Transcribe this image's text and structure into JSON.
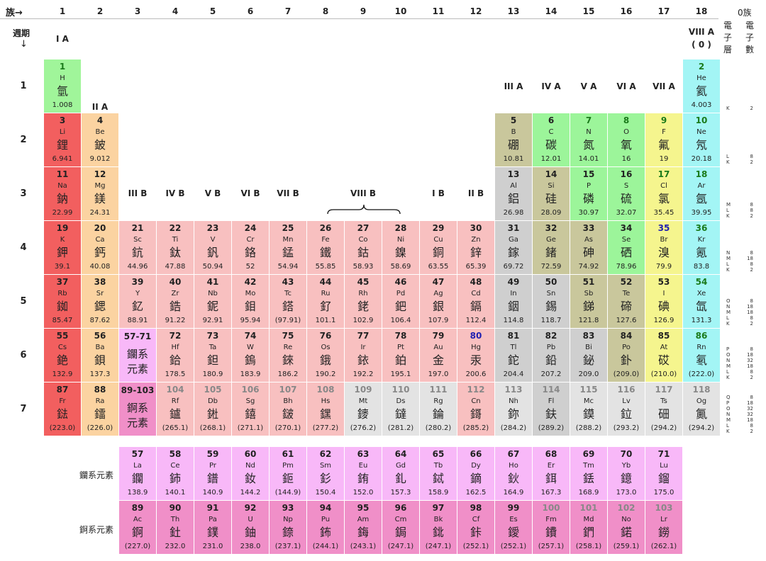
{
  "header": {
    "group_label": "族→",
    "period_label": "週期",
    "period_arrow": "↓",
    "shell_col_title": "電子層",
    "count_col_title": "電子數",
    "count_col_title_top": "0族",
    "groups": [
      "1",
      "2",
      "3",
      "4",
      "5",
      "6",
      "7",
      "8",
      "9",
      "10",
      "11",
      "12",
      "13",
      "14",
      "15",
      "16",
      "17",
      "18"
    ],
    "periods": [
      "1",
      "2",
      "3",
      "4",
      "5",
      "6",
      "7"
    ]
  },
  "group_names": {
    "g1": "I A",
    "g2": "II A",
    "g3": "III B",
    "g4": "IV B",
    "g5": "V B",
    "g6": "VI B",
    "g7": "VII B",
    "g8": "VIII B",
    "g11": "I B",
    "g12": "II B",
    "g13": "III A",
    "g14": "IV A",
    "g15": "V A",
    "g16": "VI A",
    "g17": "VII A",
    "g18": "VIII A",
    "g18b": "( 0 )"
  },
  "series_labels": {
    "lanthanide": "鑭系元素",
    "actinide": "錒系元素"
  },
  "colors": {
    "hydrogen": "#a0f59a",
    "alkali": "#f25f5f",
    "alkaline": "#fbd3a1",
    "transition": "#f8c0c0",
    "metalloid": "#c9c79c",
    "nonmetal": "#9cf59a",
    "halogen": "#f5f58e",
    "noble": "#a3f5f5",
    "poor": "#cfcfcf",
    "lanth": "#f8b8f8",
    "actin": "#f08fc8",
    "unknown": "#e3e3e3"
  },
  "elements": [
    {
      "n": "1",
      "s": "H",
      "c": "氫",
      "m": "1.008",
      "col": 1,
      "row": 1,
      "t": "hydrogen",
      "nc": "#1a7a1a"
    },
    {
      "n": "2",
      "s": "He",
      "c": "氦",
      "m": "4.003",
      "col": 18,
      "row": 1,
      "t": "noble",
      "nc": "#1a7a1a"
    },
    {
      "n": "3",
      "s": "Li",
      "c": "鋰",
      "m": "6.941",
      "col": 1,
      "row": 2,
      "t": "alkali"
    },
    {
      "n": "4",
      "s": "Be",
      "c": "鈹",
      "m": "9.012",
      "col": 2,
      "row": 2,
      "t": "alkaline"
    },
    {
      "n": "5",
      "s": "B",
      "c": "硼",
      "m": "10.81",
      "col": 13,
      "row": 2,
      "t": "metalloid"
    },
    {
      "n": "6",
      "s": "C",
      "c": "碳",
      "m": "12.01",
      "col": 14,
      "row": 2,
      "t": "nonmetal"
    },
    {
      "n": "7",
      "s": "N",
      "c": "氮",
      "m": "14.01",
      "col": 15,
      "row": 2,
      "t": "nonmetal",
      "nc": "#1a7a1a"
    },
    {
      "n": "8",
      "s": "O",
      "c": "氧",
      "m": "16",
      "col": 16,
      "row": 2,
      "t": "nonmetal",
      "nc": "#1a7a1a"
    },
    {
      "n": "9",
      "s": "F",
      "c": "氟",
      "m": "19",
      "col": 17,
      "row": 2,
      "t": "halogen",
      "nc": "#1a7a1a"
    },
    {
      "n": "10",
      "s": "Ne",
      "c": "氖",
      "m": "20.18",
      "col": 18,
      "row": 2,
      "t": "noble",
      "nc": "#1a7a1a"
    },
    {
      "n": "11",
      "s": "Na",
      "c": "鈉",
      "m": "22.99",
      "col": 1,
      "row": 3,
      "t": "alkali"
    },
    {
      "n": "12",
      "s": "Mg",
      "c": "鎂",
      "m": "24.31",
      "col": 2,
      "row": 3,
      "t": "alkaline"
    },
    {
      "n": "13",
      "s": "Al",
      "c": "鋁",
      "m": "26.98",
      "col": 13,
      "row": 3,
      "t": "poor"
    },
    {
      "n": "14",
      "s": "Si",
      "c": "硅",
      "m": "28.09",
      "col": 14,
      "row": 3,
      "t": "metalloid"
    },
    {
      "n": "15",
      "s": "P",
      "c": "磷",
      "m": "30.97",
      "col": 15,
      "row": 3,
      "t": "nonmetal"
    },
    {
      "n": "16",
      "s": "S",
      "c": "硫",
      "m": "32.07",
      "col": 16,
      "row": 3,
      "t": "nonmetal"
    },
    {
      "n": "17",
      "s": "Cl",
      "c": "氯",
      "m": "35.45",
      "col": 17,
      "row": 3,
      "t": "halogen",
      "nc": "#1a7a1a"
    },
    {
      "n": "18",
      "s": "Ar",
      "c": "氬",
      "m": "39.95",
      "col": 18,
      "row": 3,
      "t": "noble",
      "nc": "#1a7a1a"
    },
    {
      "n": "19",
      "s": "K",
      "c": "鉀",
      "m": "39.1",
      "col": 1,
      "row": 4,
      "t": "alkali"
    },
    {
      "n": "20",
      "s": "Ca",
      "c": "鈣",
      "m": "40.08",
      "col": 2,
      "row": 4,
      "t": "alkaline"
    },
    {
      "n": "21",
      "s": "Sc",
      "c": "鈧",
      "m": "44.96",
      "col": 3,
      "row": 4,
      "t": "transition"
    },
    {
      "n": "22",
      "s": "Ti",
      "c": "鈦",
      "m": "47.88",
      "col": 4,
      "row": 4,
      "t": "transition"
    },
    {
      "n": "23",
      "s": "V",
      "c": "釩",
      "m": "50.94",
      "col": 5,
      "row": 4,
      "t": "transition"
    },
    {
      "n": "24",
      "s": "Cr",
      "c": "鉻",
      "m": "52",
      "col": 6,
      "row": 4,
      "t": "transition"
    },
    {
      "n": "25",
      "s": "Mn",
      "c": "錳",
      "m": "54.94",
      "col": 7,
      "row": 4,
      "t": "transition"
    },
    {
      "n": "26",
      "s": "Fe",
      "c": "鐵",
      "m": "55.85",
      "col": 8,
      "row": 4,
      "t": "transition"
    },
    {
      "n": "27",
      "s": "Co",
      "c": "鈷",
      "m": "58.93",
      "col": 9,
      "row": 4,
      "t": "transition"
    },
    {
      "n": "28",
      "s": "Ni",
      "c": "鎳",
      "m": "58.69",
      "col": 10,
      "row": 4,
      "t": "transition"
    },
    {
      "n": "29",
      "s": "Cu",
      "c": "銅",
      "m": "63.55",
      "col": 11,
      "row": 4,
      "t": "transition"
    },
    {
      "n": "30",
      "s": "Zn",
      "c": "鋅",
      "m": "65.39",
      "col": 12,
      "row": 4,
      "t": "transition"
    },
    {
      "n": "31",
      "s": "Ga",
      "c": "鎵",
      "m": "69.72",
      "col": 13,
      "row": 4,
      "t": "poor"
    },
    {
      "n": "32",
      "s": "Ge",
      "c": "鍺",
      "m": "72.59",
      "col": 14,
      "row": 4,
      "t": "metalloid"
    },
    {
      "n": "33",
      "s": "As",
      "c": "砷",
      "m": "74.92",
      "col": 15,
      "row": 4,
      "t": "metalloid"
    },
    {
      "n": "34",
      "s": "Se",
      "c": "硒",
      "m": "78.96",
      "col": 16,
      "row": 4,
      "t": "nonmetal"
    },
    {
      "n": "35",
      "s": "Br",
      "c": "溴",
      "m": "79.9",
      "col": 17,
      "row": 4,
      "t": "halogen",
      "nc": "#1f1fb0"
    },
    {
      "n": "36",
      "s": "Kr",
      "c": "氪",
      "m": "83.8",
      "col": 18,
      "row": 4,
      "t": "noble",
      "nc": "#1a7a1a"
    },
    {
      "n": "37",
      "s": "Rb",
      "c": "銣",
      "m": "85.47",
      "col": 1,
      "row": 5,
      "t": "alkali"
    },
    {
      "n": "38",
      "s": "Sr",
      "c": "鍶",
      "m": "87.62",
      "col": 2,
      "row": 5,
      "t": "alkaline"
    },
    {
      "n": "39",
      "s": "Y",
      "c": "釔",
      "m": "88.91",
      "col": 3,
      "row": 5,
      "t": "transition"
    },
    {
      "n": "40",
      "s": "Zr",
      "c": "鋯",
      "m": "91.22",
      "col": 4,
      "row": 5,
      "t": "transition"
    },
    {
      "n": "41",
      "s": "Nb",
      "c": "鈮",
      "m": "92.91",
      "col": 5,
      "row": 5,
      "t": "transition"
    },
    {
      "n": "42",
      "s": "Mo",
      "c": "鉬",
      "m": "95.94",
      "col": 6,
      "row": 5,
      "t": "transition"
    },
    {
      "n": "43",
      "s": "Tc",
      "c": "鎝",
      "m": "(97.91)",
      "col": 7,
      "row": 5,
      "t": "transition"
    },
    {
      "n": "44",
      "s": "Ru",
      "c": "釕",
      "m": "101.1",
      "col": 8,
      "row": 5,
      "t": "transition"
    },
    {
      "n": "45",
      "s": "Rh",
      "c": "銠",
      "m": "102.9",
      "col": 9,
      "row": 5,
      "t": "transition"
    },
    {
      "n": "46",
      "s": "Pd",
      "c": "鈀",
      "m": "106.4",
      "col": 10,
      "row": 5,
      "t": "transition"
    },
    {
      "n": "47",
      "s": "Ag",
      "c": "銀",
      "m": "107.9",
      "col": 11,
      "row": 5,
      "t": "transition"
    },
    {
      "n": "48",
      "s": "Cd",
      "c": "鎘",
      "m": "112.4",
      "col": 12,
      "row": 5,
      "t": "transition"
    },
    {
      "n": "49",
      "s": "In",
      "c": "銦",
      "m": "114.8",
      "col": 13,
      "row": 5,
      "t": "poor"
    },
    {
      "n": "50",
      "s": "Sn",
      "c": "錫",
      "m": "118.7",
      "col": 14,
      "row": 5,
      "t": "poor"
    },
    {
      "n": "51",
      "s": "Sb",
      "c": "銻",
      "m": "121.8",
      "col": 15,
      "row": 5,
      "t": "metalloid"
    },
    {
      "n": "52",
      "s": "Te",
      "c": "碲",
      "m": "127.6",
      "col": 16,
      "row": 5,
      "t": "metalloid"
    },
    {
      "n": "53",
      "s": "I",
      "c": "碘",
      "m": "126.9",
      "col": 17,
      "row": 5,
      "t": "halogen"
    },
    {
      "n": "54",
      "s": "Xe",
      "c": "氙",
      "m": "131.3",
      "col": 18,
      "row": 5,
      "t": "noble",
      "nc": "#1a7a1a"
    },
    {
      "n": "55",
      "s": "Cs",
      "c": "銫",
      "m": "132.9",
      "col": 1,
      "row": 6,
      "t": "alkali"
    },
    {
      "n": "56",
      "s": "Ba",
      "c": "鋇",
      "m": "137.3",
      "col": 2,
      "row": 6,
      "t": "alkaline"
    },
    {
      "n": "72",
      "s": "Hf",
      "c": "鉿",
      "m": "178.5",
      "col": 4,
      "row": 6,
      "t": "transition"
    },
    {
      "n": "73",
      "s": "Ta",
      "c": "鉭",
      "m": "180.9",
      "col": 5,
      "row": 6,
      "t": "transition"
    },
    {
      "n": "74",
      "s": "W",
      "c": "鎢",
      "m": "183.9",
      "col": 6,
      "row": 6,
      "t": "transition"
    },
    {
      "n": "75",
      "s": "Re",
      "c": "錸",
      "m": "186.2",
      "col": 7,
      "row": 6,
      "t": "transition"
    },
    {
      "n": "76",
      "s": "Os",
      "c": "鋨",
      "m": "190.2",
      "col": 8,
      "row": 6,
      "t": "transition"
    },
    {
      "n": "77",
      "s": "Ir",
      "c": "銥",
      "m": "192.2",
      "col": 9,
      "row": 6,
      "t": "transition"
    },
    {
      "n": "78",
      "s": "Pt",
      "c": "鉑",
      "m": "195.1",
      "col": 10,
      "row": 6,
      "t": "transition"
    },
    {
      "n": "79",
      "s": "Au",
      "c": "金",
      "m": "197.0",
      "col": 11,
      "row": 6,
      "t": "transition"
    },
    {
      "n": "80",
      "s": "Hg",
      "c": "汞",
      "m": "200.6",
      "col": 12,
      "row": 6,
      "t": "transition",
      "nc": "#1f1fb0"
    },
    {
      "n": "81",
      "s": "Tl",
      "c": "鉈",
      "m": "204.4",
      "col": 13,
      "row": 6,
      "t": "poor"
    },
    {
      "n": "82",
      "s": "Pb",
      "c": "鉛",
      "m": "207.2",
      "col": 14,
      "row": 6,
      "t": "poor"
    },
    {
      "n": "83",
      "s": "Bi",
      "c": "鉍",
      "m": "209.0",
      "col": 15,
      "row": 6,
      "t": "poor"
    },
    {
      "n": "84",
      "s": "Po",
      "c": "釙",
      "m": "(209.0)",
      "col": 16,
      "row": 6,
      "t": "metalloid"
    },
    {
      "n": "85",
      "s": "At",
      "c": "砹",
      "m": "(210.0)",
      "col": 17,
      "row": 6,
      "t": "halogen"
    },
    {
      "n": "86",
      "s": "Rn",
      "c": "氡",
      "m": "(222.0)",
      "col": 18,
      "row": 6,
      "t": "noble",
      "nc": "#1a7a1a"
    },
    {
      "n": "87",
      "s": "Fr",
      "c": "鍅",
      "m": "(223.0)",
      "col": 1,
      "row": 7,
      "t": "alkali"
    },
    {
      "n": "88",
      "s": "Ra",
      "c": "鐳",
      "m": "(226.0)",
      "col": 2,
      "row": 7,
      "t": "alkaline"
    },
    {
      "n": "104",
      "s": "Rf",
      "c": "鑪",
      "m": "(265.1)",
      "col": 4,
      "row": 7,
      "t": "transition",
      "nc": "#888"
    },
    {
      "n": "105",
      "s": "Db",
      "c": "𨧀",
      "m": "(268.1)",
      "col": 5,
      "row": 7,
      "t": "transition",
      "nc": "#888"
    },
    {
      "n": "106",
      "s": "Sg",
      "c": "𨭎",
      "m": "(271.1)",
      "col": 6,
      "row": 7,
      "t": "transition",
      "nc": "#888"
    },
    {
      "n": "107",
      "s": "Bh",
      "c": "𨨏",
      "m": "(270.1)",
      "col": 7,
      "row": 7,
      "t": "transition",
      "nc": "#888"
    },
    {
      "n": "108",
      "s": "Hs",
      "c": "𨭆",
      "m": "(277.2)",
      "col": 8,
      "row": 7,
      "t": "transition",
      "nc": "#888"
    },
    {
      "n": "109",
      "s": "Mt",
      "c": "䥑",
      "m": "(276.2)",
      "col": 9,
      "row": 7,
      "t": "unknown",
      "nc": "#888"
    },
    {
      "n": "110",
      "s": "Ds",
      "c": "鐽",
      "m": "(281.2)",
      "col": 10,
      "row": 7,
      "t": "unknown",
      "nc": "#888"
    },
    {
      "n": "111",
      "s": "Rg",
      "c": "錀",
      "m": "(280.2)",
      "col": 11,
      "row": 7,
      "t": "unknown",
      "nc": "#888"
    },
    {
      "n": "112",
      "s": "Cn",
      "c": "鎶",
      "m": "(285.2)",
      "col": 12,
      "row": 7,
      "t": "transition",
      "nc": "#888"
    },
    {
      "n": "113",
      "s": "Nh",
      "c": "鉨",
      "m": "(284.2)",
      "col": 13,
      "row": 7,
      "t": "unknown",
      "nc": "#888"
    },
    {
      "n": "114",
      "s": "Fl",
      "c": "鈇",
      "m": "(289.2)",
      "col": 14,
      "row": 7,
      "t": "poor",
      "nc": "#888"
    },
    {
      "n": "115",
      "s": "Mc",
      "c": "鏌",
      "m": "(288.2)",
      "col": 15,
      "row": 7,
      "t": "unknown",
      "nc": "#888"
    },
    {
      "n": "116",
      "s": "Lv",
      "c": "鉝",
      "m": "(293.2)",
      "col": 16,
      "row": 7,
      "t": "unknown",
      "nc": "#888"
    },
    {
      "n": "117",
      "s": "Ts",
      "c": "鿬",
      "m": "(294.2)",
      "col": 17,
      "row": 7,
      "t": "unknown",
      "nc": "#888"
    },
    {
      "n": "118",
      "s": "Og",
      "c": "鿫",
      "m": "(294.2)",
      "col": 18,
      "row": 7,
      "t": "unknown",
      "nc": "#888"
    },
    {
      "n": "57",
      "s": "La",
      "c": "鑭",
      "m": "138.9",
      "col": 3,
      "row": 9,
      "t": "lanth"
    },
    {
      "n": "58",
      "s": "Ce",
      "c": "鈰",
      "m": "140.1",
      "col": 4,
      "row": 9,
      "t": "lanth"
    },
    {
      "n": "59",
      "s": "Pr",
      "c": "鐠",
      "m": "140.9",
      "col": 5,
      "row": 9,
      "t": "lanth"
    },
    {
      "n": "60",
      "s": "Nd",
      "c": "釹",
      "m": "144.2",
      "col": 6,
      "row": 9,
      "t": "lanth"
    },
    {
      "n": "61",
      "s": "Pm",
      "c": "鉕",
      "m": "(144.9)",
      "col": 7,
      "row": 9,
      "t": "lanth"
    },
    {
      "n": "62",
      "s": "Sm",
      "c": "釤",
      "m": "150.4",
      "col": 8,
      "row": 9,
      "t": "lanth"
    },
    {
      "n": "63",
      "s": "Eu",
      "c": "銪",
      "m": "152.0",
      "col": 9,
      "row": 9,
      "t": "lanth"
    },
    {
      "n": "64",
      "s": "Gd",
      "c": "釓",
      "m": "157.3",
      "col": 10,
      "row": 9,
      "t": "lanth"
    },
    {
      "n": "65",
      "s": "Tb",
      "c": "鋱",
      "m": "158.9",
      "col": 11,
      "row": 9,
      "t": "lanth"
    },
    {
      "n": "66",
      "s": "Dy",
      "c": "鏑",
      "m": "162.5",
      "col": 12,
      "row": 9,
      "t": "lanth"
    },
    {
      "n": "67",
      "s": "Ho",
      "c": "鈥",
      "m": "164.9",
      "col": 13,
      "row": 9,
      "t": "lanth"
    },
    {
      "n": "68",
      "s": "Er",
      "c": "鉺",
      "m": "167.3",
      "col": 14,
      "row": 9,
      "t": "lanth"
    },
    {
      "n": "69",
      "s": "Tm",
      "c": "銩",
      "m": "168.9",
      "col": 15,
      "row": 9,
      "t": "lanth"
    },
    {
      "n": "70",
      "s": "Yb",
      "c": "鐿",
      "m": "173.0",
      "col": 16,
      "row": 9,
      "t": "lanth"
    },
    {
      "n": "71",
      "s": "Lu",
      "c": "鎦",
      "m": "175.0",
      "col": 17,
      "row": 9,
      "t": "lanth"
    },
    {
      "n": "89",
      "s": "Ac",
      "c": "錒",
      "m": "(227.0)",
      "col": 3,
      "row": 10,
      "t": "actin"
    },
    {
      "n": "90",
      "s": "Th",
      "c": "釷",
      "m": "232.0",
      "col": 4,
      "row": 10,
      "t": "actin"
    },
    {
      "n": "91",
      "s": "Pa",
      "c": "鏷",
      "m": "231.0",
      "col": 5,
      "row": 10,
      "t": "actin"
    },
    {
      "n": "92",
      "s": "U",
      "c": "鈾",
      "m": "238.0",
      "col": 6,
      "row": 10,
      "t": "actin"
    },
    {
      "n": "93",
      "s": "Np",
      "c": "錼",
      "m": "(237.1)",
      "col": 7,
      "row": 10,
      "t": "actin"
    },
    {
      "n": "94",
      "s": "Pu",
      "c": "鈽",
      "m": "(244.1)",
      "col": 8,
      "row": 10,
      "t": "actin"
    },
    {
      "n": "95",
      "s": "Am",
      "c": "鋂",
      "m": "(243.1)",
      "col": 9,
      "row": 10,
      "t": "actin"
    },
    {
      "n": "96",
      "s": "Cm",
      "c": "鋦",
      "m": "(247.1)",
      "col": 10,
      "row": 10,
      "t": "actin"
    },
    {
      "n": "97",
      "s": "Bk",
      "c": "鉳",
      "m": "(247.1)",
      "col": 11,
      "row": 10,
      "t": "actin"
    },
    {
      "n": "98",
      "s": "Cf",
      "c": "鉲",
      "m": "(252.1)",
      "col": 12,
      "row": 10,
      "t": "actin"
    },
    {
      "n": "99",
      "s": "Es",
      "c": "鑀",
      "m": "(252.1)",
      "col": 13,
      "row": 10,
      "t": "actin"
    },
    {
      "n": "100",
      "s": "Fm",
      "c": "鐨",
      "m": "(257.1)",
      "col": 14,
      "row": 10,
      "t": "actin",
      "nc": "#888"
    },
    {
      "n": "101",
      "s": "Md",
      "c": "鍆",
      "m": "(258.1)",
      "col": 15,
      "row": 10,
      "t": "actin",
      "nc": "#888"
    },
    {
      "n": "102",
      "s": "No",
      "c": "鍩",
      "m": "(259.1)",
      "col": 16,
      "row": 10,
      "t": "actin",
      "nc": "#888"
    },
    {
      "n": "103",
      "s": "Lr",
      "c": "鐒",
      "m": "(262.1)",
      "col": 17,
      "row": 10,
      "t": "actin",
      "nc": "#888"
    }
  ],
  "series_cells": [
    {
      "n": "57-71",
      "c": "鑭系\n元素",
      "col": 3,
      "row": 6,
      "t": "lanth"
    },
    {
      "n": "89-103",
      "c": "錒系\n元素",
      "col": 3,
      "row": 7,
      "t": "actin"
    }
  ],
  "shells": [
    {
      "row": 1,
      "shells": "K",
      "counts": "2"
    },
    {
      "row": 2,
      "shells": "L\nK",
      "counts": "8\n2"
    },
    {
      "row": 3,
      "shells": "M\nL\nK",
      "counts": "8\n8\n2"
    },
    {
      "row": 4,
      "shells": "N\nM\nL\nK",
      "counts": "8\n18\n8\n2"
    },
    {
      "row": 5,
      "shells": "O\nN\nM\nL\nK",
      "counts": "8\n18\n18\n8\n2"
    },
    {
      "row": 6,
      "shells": "P\nO\nN\nM\nL\nK",
      "counts": "8\n18\n32\n18\n8\n2"
    },
    {
      "row": 7,
      "shells": "Q\nP\nO\nN\nM\nL\nK",
      "counts": "8\n18\n32\n32\n18\n8\n2"
    }
  ]
}
